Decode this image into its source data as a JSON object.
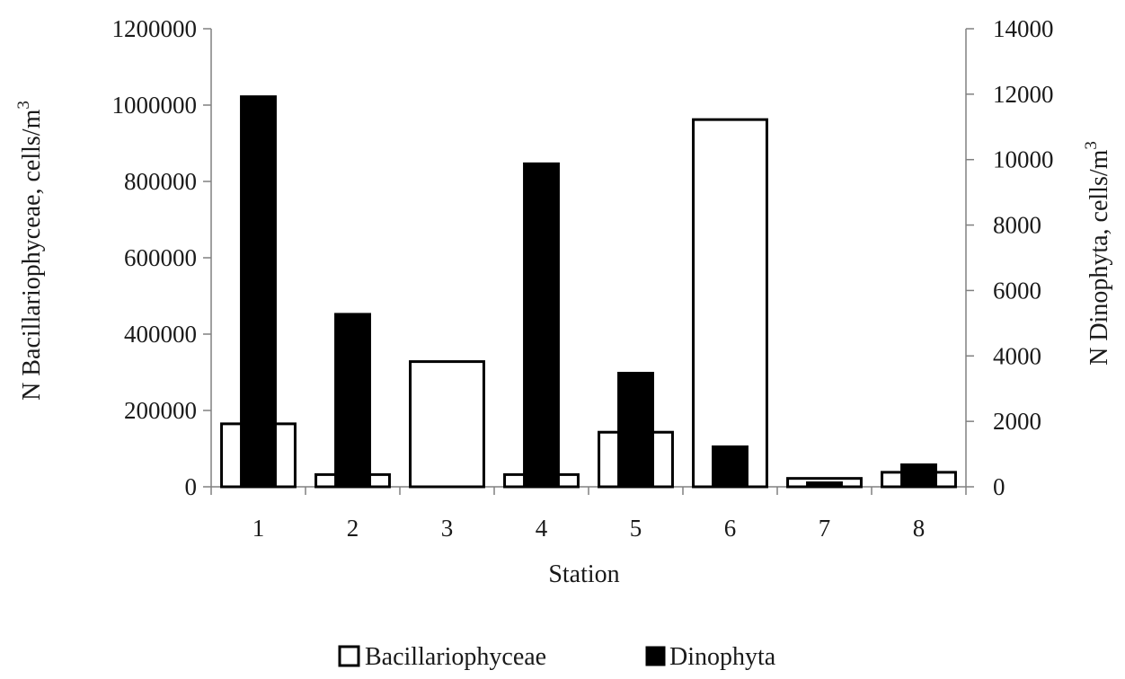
{
  "chart_data": {
    "type": "bar",
    "title": "",
    "xlabel": "Station",
    "ylabel_left": "N Bacillariophyceae, cells/m",
    "ylabel_right": "N Dinophyta, cells/m",
    "ylabel_superscript": "3",
    "categories": [
      "1",
      "2",
      "3",
      "4",
      "5",
      "6",
      "7",
      "8"
    ],
    "ylim_left": [
      0,
      1200000
    ],
    "ylim_right": [
      0,
      14000
    ],
    "yticks_left": [
      "0",
      "200000",
      "400000",
      "600000",
      "800000",
      "1000000",
      "1200000"
    ],
    "yticks_right": [
      "0",
      "2000",
      "4000",
      "6000",
      "8000",
      "10000",
      "12000",
      "14000"
    ],
    "grid": false,
    "legend_position": "bottom",
    "series": [
      {
        "name": "Bacillariophyceae",
        "axis": "left",
        "fill": "#ffffff",
        "stroke": "#000000",
        "values": [
          165000,
          32000,
          328000,
          32000,
          143000,
          962000,
          22000,
          38000
        ]
      },
      {
        "name": "Dinophyta",
        "axis": "right",
        "fill": "#000000",
        "stroke": "#000000",
        "values": [
          11950,
          5300,
          0,
          9900,
          3500,
          1250,
          150,
          700
        ]
      }
    ]
  }
}
